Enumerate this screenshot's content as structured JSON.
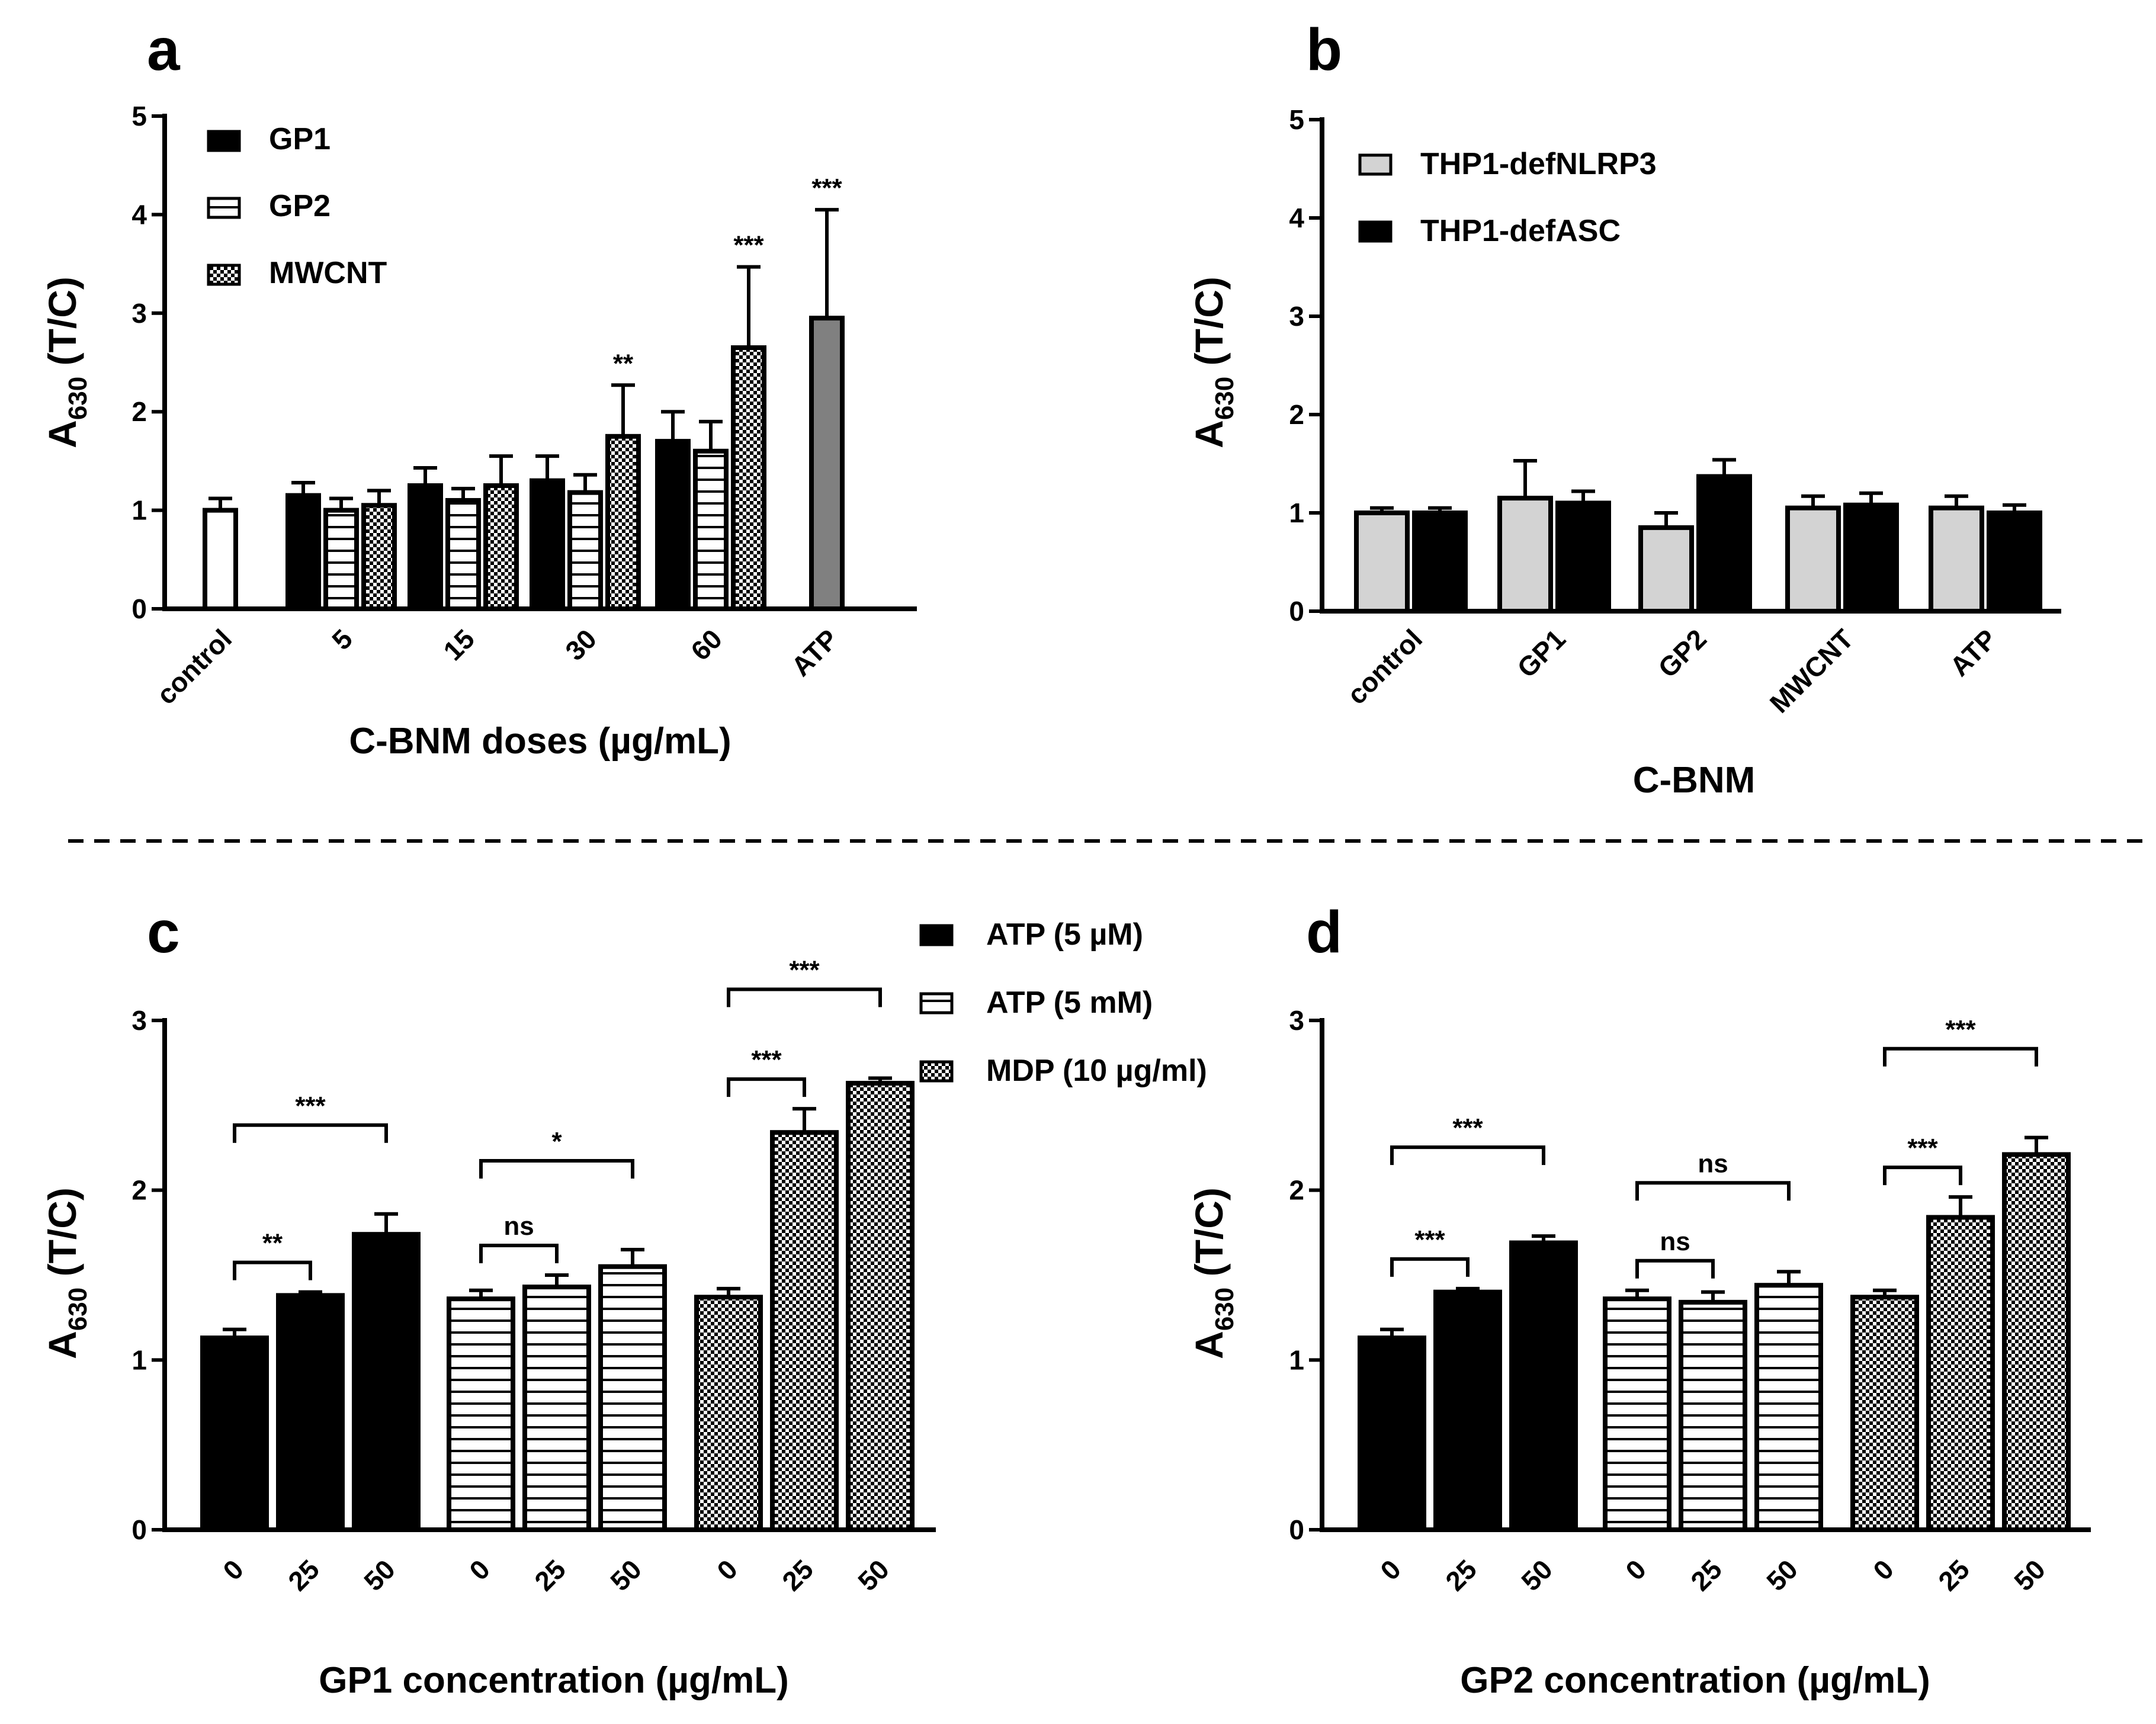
{
  "figure": {
    "colors": {
      "black": "#000000",
      "gray_light": "#d3d3d3",
      "gray_dark": "#808080",
      "white": "#ffffff"
    }
  },
  "chart_data": [
    {
      "panel": "a",
      "type": "bar",
      "ylabel_main": "A",
      "ylabel_sub": "630",
      "ylabel_rest": " (T/C)",
      "xlabel": "C-BNM doses (µg/mL)",
      "ylim": [
        0,
        5
      ],
      "yticks": [
        "0",
        "1",
        "2",
        "3",
        "4",
        "5"
      ],
      "categories": [
        "control",
        "5",
        "15",
        "30",
        "60",
        "ATP"
      ],
      "legend": [
        {
          "label": "GP1",
          "pattern": "solid-black"
        },
        {
          "label": "GP2",
          "pattern": "hstripe"
        },
        {
          "label": "MWCNT",
          "pattern": "checker"
        }
      ],
      "bars": [
        {
          "category": "control",
          "series": "control",
          "value": 1.0,
          "error": 0.12,
          "pattern": "white",
          "sig": ""
        },
        {
          "category": "5",
          "series": "GP1",
          "value": 1.15,
          "error": 0.13,
          "pattern": "solid-black",
          "sig": ""
        },
        {
          "category": "5",
          "series": "GP2",
          "value": 1.0,
          "error": 0.12,
          "pattern": "hstripe",
          "sig": ""
        },
        {
          "category": "5",
          "series": "MWCNT",
          "value": 1.05,
          "error": 0.15,
          "pattern": "checker",
          "sig": ""
        },
        {
          "category": "15",
          "series": "GP1",
          "value": 1.25,
          "error": 0.18,
          "pattern": "solid-black",
          "sig": ""
        },
        {
          "category": "15",
          "series": "GP2",
          "value": 1.1,
          "error": 0.12,
          "pattern": "hstripe",
          "sig": ""
        },
        {
          "category": "15",
          "series": "MWCNT",
          "value": 1.25,
          "error": 0.3,
          "pattern": "checker",
          "sig": ""
        },
        {
          "category": "30",
          "series": "GP1",
          "value": 1.3,
          "error": 0.25,
          "pattern": "solid-black",
          "sig": ""
        },
        {
          "category": "30",
          "series": "GP2",
          "value": 1.18,
          "error": 0.18,
          "pattern": "hstripe",
          "sig": ""
        },
        {
          "category": "30",
          "series": "MWCNT",
          "value": 1.75,
          "error": 0.52,
          "pattern": "checker",
          "sig": "**"
        },
        {
          "category": "60",
          "series": "GP1",
          "value": 1.7,
          "error": 0.3,
          "pattern": "solid-black",
          "sig": ""
        },
        {
          "category": "60",
          "series": "GP2",
          "value": 1.6,
          "error": 0.3,
          "pattern": "hstripe",
          "sig": ""
        },
        {
          "category": "60",
          "series": "MWCNT",
          "value": 2.65,
          "error": 0.82,
          "pattern": "checker",
          "sig": "***"
        },
        {
          "category": "ATP",
          "series": "ATP",
          "value": 2.95,
          "error": 1.1,
          "pattern": "solid-darkgray",
          "sig": "***"
        }
      ]
    },
    {
      "panel": "b",
      "type": "bar",
      "ylabel_main": "A",
      "ylabel_sub": "630",
      "ylabel_rest": " (T/C)",
      "xlabel": "C-BNM",
      "ylim": [
        0,
        5
      ],
      "yticks": [
        "0",
        "1",
        "2",
        "3",
        "4",
        "5"
      ],
      "categories": [
        "control",
        "GP1",
        "GP2",
        "MWCNT",
        "ATP"
      ],
      "legend": [
        {
          "label": "THP1-defNLRP3",
          "pattern": "solid-lightgray"
        },
        {
          "label": "THP1-defASC",
          "pattern": "solid-black"
        }
      ],
      "series": [
        {
          "name": "THP1-defNLRP3",
          "pattern": "solid-lightgray",
          "values": [
            1.0,
            1.15,
            0.85,
            1.05,
            1.05
          ],
          "errors": [
            0.05,
            0.38,
            0.15,
            0.12,
            0.12
          ]
        },
        {
          "name": "THP1-defASC",
          "pattern": "solid-black",
          "values": [
            1.0,
            1.1,
            1.37,
            1.08,
            1.0
          ],
          "errors": [
            0.05,
            0.12,
            0.17,
            0.12,
            0.08
          ]
        }
      ]
    },
    {
      "panel": "c",
      "type": "bar",
      "ylabel_main": "A",
      "ylabel_sub": "630",
      "ylabel_rest": " (T/C)",
      "xlabel": "GP1 concentration (µg/mL)",
      "ylim": [
        0,
        3
      ],
      "yticks": [
        "0",
        "1",
        "2",
        "3"
      ],
      "legend": [
        {
          "label": "ATP (5 µM)",
          "pattern": "solid-black"
        },
        {
          "label": "ATP (5 mM)",
          "pattern": "hstripe"
        },
        {
          "label": "MDP (10 µg/ml)",
          "pattern": "checker"
        }
      ],
      "groups": [
        {
          "name": "ATP (5 µM)",
          "pattern": "solid-black",
          "labels": [
            "0",
            "25",
            "50"
          ],
          "values": [
            1.13,
            1.38,
            1.74
          ],
          "errors": [
            0.05,
            0.02,
            0.12
          ],
          "comparisons": [
            {
              "from": 0,
              "to": 1,
              "level": 1,
              "label": "**"
            },
            {
              "from": 0,
              "to": 2,
              "level": 2,
              "label": "***"
            }
          ]
        },
        {
          "name": "ATP (5 mM)",
          "pattern": "hstripe",
          "labels": [
            "0",
            "25",
            "50"
          ],
          "values": [
            1.36,
            1.43,
            1.55
          ],
          "errors": [
            0.05,
            0.07,
            0.1
          ],
          "comparisons": [
            {
              "from": 0,
              "to": 1,
              "level": 1,
              "label": "ns"
            },
            {
              "from": 0,
              "to": 2,
              "level": 2,
              "label": "*"
            }
          ]
        },
        {
          "name": "MDP (10 µg/ml)",
          "pattern": "checker",
          "labels": [
            "0",
            "25",
            "50"
          ],
          "values": [
            1.37,
            2.34,
            2.63
          ],
          "errors": [
            0.05,
            0.14,
            0.03
          ],
          "comparisons": [
            {
              "from": 0,
              "to": 1,
              "level": 1,
              "label": "***"
            },
            {
              "from": 0,
              "to": 2,
              "level": 2,
              "label": "***"
            }
          ]
        }
      ]
    },
    {
      "panel": "d",
      "type": "bar",
      "ylabel_main": "A",
      "ylabel_sub": "630",
      "ylabel_rest": " (T/C)",
      "xlabel": "GP2 concentration (µg/mL)",
      "ylim": [
        0,
        3
      ],
      "yticks": [
        "0",
        "1",
        "2",
        "3"
      ],
      "groups": [
        {
          "name": "ATP (5 µM)",
          "pattern": "solid-black",
          "labels": [
            "0",
            "25",
            "50"
          ],
          "values": [
            1.13,
            1.4,
            1.69
          ],
          "errors": [
            0.05,
            0.02,
            0.04
          ],
          "comparisons": [
            {
              "from": 0,
              "to": 1,
              "level": 1,
              "label": "***"
            },
            {
              "from": 0,
              "to": 2,
              "level": 2,
              "label": "***"
            }
          ]
        },
        {
          "name": "ATP (5 mM)",
          "pattern": "hstripe",
          "labels": [
            "0",
            "25",
            "50"
          ],
          "values": [
            1.36,
            1.34,
            1.44
          ],
          "errors": [
            0.05,
            0.06,
            0.08
          ],
          "comparisons": [
            {
              "from": 0,
              "to": 1,
              "level": 1,
              "label": "ns"
            },
            {
              "from": 0,
              "to": 2,
              "level": 2,
              "label": "ns"
            }
          ]
        },
        {
          "name": "MDP (10 µg/ml)",
          "pattern": "checker",
          "labels": [
            "0",
            "25",
            "50"
          ],
          "values": [
            1.37,
            1.84,
            2.21
          ],
          "errors": [
            0.04,
            0.12,
            0.1
          ],
          "comparisons": [
            {
              "from": 0,
              "to": 1,
              "level": 1,
              "label": "***"
            },
            {
              "from": 0,
              "to": 2,
              "level": 2,
              "label": "***"
            }
          ]
        }
      ]
    }
  ]
}
